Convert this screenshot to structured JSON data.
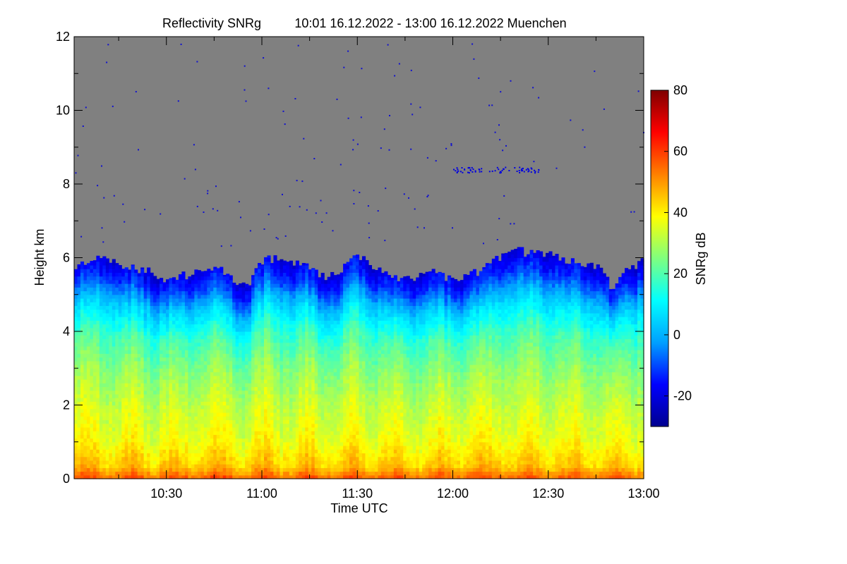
{
  "chart_data": {
    "type": "heatmap",
    "title": "Reflectivity SNRg",
    "subtitle": "10:01 16.12.2022 - 13:00 16.12.2022 Muenchen",
    "xlabel": "Time UTC",
    "ylabel": "Height km",
    "colorbar_label": "SNRg dB",
    "x_range_minutes_utc": [
      601,
      780
    ],
    "x_ticks": [
      {
        "label": "10:30",
        "value": 630
      },
      {
        "label": "11:00",
        "value": 660
      },
      {
        "label": "11:30",
        "value": 690
      },
      {
        "label": "12:00",
        "value": 720
      },
      {
        "label": "12:30",
        "value": 750
      },
      {
        "label": "13:00",
        "value": 780
      }
    ],
    "ylim": [
      0,
      12
    ],
    "y_ticks": [
      {
        "label": "0",
        "value": 0
      },
      {
        "label": "2",
        "value": 2
      },
      {
        "label": "4",
        "value": 4
      },
      {
        "label": "6",
        "value": 6
      },
      {
        "label": "8",
        "value": 8
      },
      {
        "label": "10",
        "value": 10
      },
      {
        "label": "12",
        "value": 12
      }
    ],
    "colorbar_range": [
      -30,
      80
    ],
    "colorbar_ticks": [
      {
        "label": "-20",
        "value": -20
      },
      {
        "label": "0",
        "value": 0
      },
      {
        "label": "20",
        "value": 20
      },
      {
        "label": "40",
        "value": 40
      },
      {
        "label": "60",
        "value": 60
      },
      {
        "label": "80",
        "value": 80
      }
    ],
    "colormap": [
      "#00008f",
      "#0000ff",
      "#00a0ff",
      "#00ffff",
      "#7fff7f",
      "#ffff00",
      "#ff8000",
      "#ff0000",
      "#7f0000"
    ],
    "no_signal_color": "#808080",
    "cloud_top_km": {
      "times_minutes_utc": [
        601,
        605,
        610,
        615,
        620,
        625,
        630,
        635,
        640,
        645,
        650,
        655,
        660,
        665,
        670,
        675,
        680,
        685,
        690,
        695,
        700,
        705,
        710,
        715,
        720,
        725,
        730,
        735,
        740,
        745,
        750,
        755,
        760,
        765,
        770,
        775,
        780
      ],
      "heights_km": [
        5.8,
        5.9,
        6.0,
        5.8,
        5.7,
        5.6,
        5.3,
        5.5,
        5.6,
        5.8,
        5.5,
        5.2,
        5.9,
        6.0,
        5.9,
        5.8,
        5.4,
        5.7,
        6.0,
        5.8,
        5.5,
        5.4,
        5.5,
        5.6,
        5.4,
        5.5,
        5.7,
        6.0,
        6.2,
        6.1,
        6.1,
        5.9,
        5.9,
        5.8,
        5.2,
        5.7,
        5.9
      ]
    },
    "snr_profile_db": {
      "heights_km": [
        0.0,
        0.3,
        1.0,
        2.0,
        3.0,
        4.0,
        4.8,
        5.5,
        6.0
      ],
      "values": [
        55,
        45,
        38,
        33,
        27,
        18,
        5,
        -12,
        -20
      ]
    }
  }
}
